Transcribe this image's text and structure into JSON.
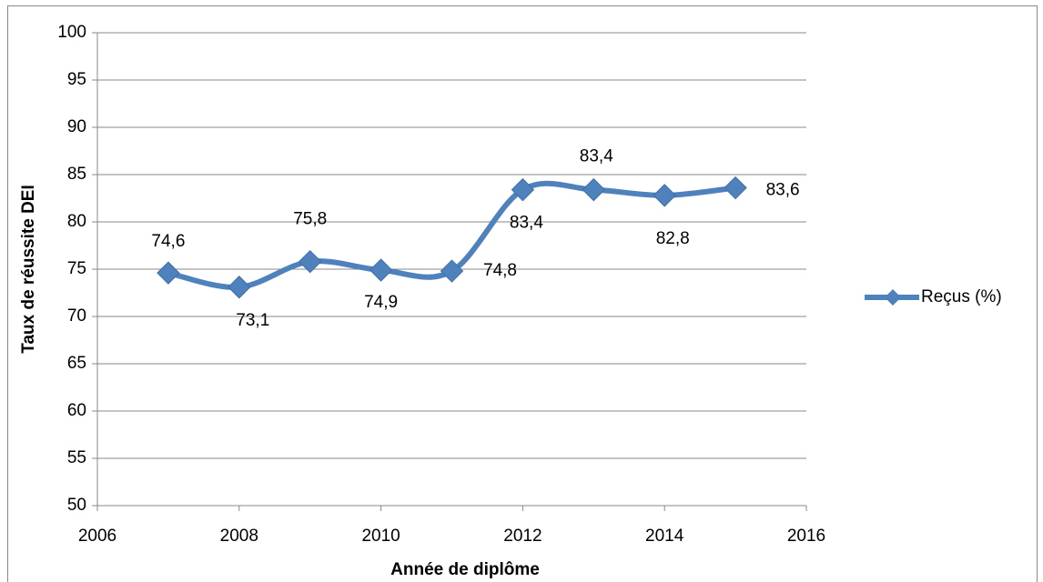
{
  "chart_data": {
    "type": "line",
    "x_label": "Année de diplôme",
    "y_label": "Taux de réussite DEI",
    "x": [
      2007,
      2008,
      2009,
      2010,
      2011,
      2012,
      2013,
      2014,
      2015
    ],
    "series": [
      {
        "name": "Reçus (%)",
        "color": "#4f81bd",
        "values": [
          74.6,
          73.1,
          75.8,
          74.9,
          74.8,
          83.4,
          83.4,
          82.8,
          83.6
        ],
        "value_labels": [
          "74,6",
          "73,1",
          "75,8",
          "74,9",
          "74,8",
          "83,4",
          "83,4",
          "82,8",
          "83,6"
        ]
      }
    ],
    "xlim": [
      2006,
      2016
    ],
    "xticks": [
      2006,
      2008,
      2010,
      2012,
      2014,
      2016
    ],
    "ylim": [
      50,
      100
    ],
    "yticks": [
      50,
      55,
      60,
      65,
      70,
      75,
      80,
      85,
      90,
      95,
      100
    ],
    "grid": true,
    "smooth": true,
    "marker": "diamond",
    "legend": "right"
  }
}
